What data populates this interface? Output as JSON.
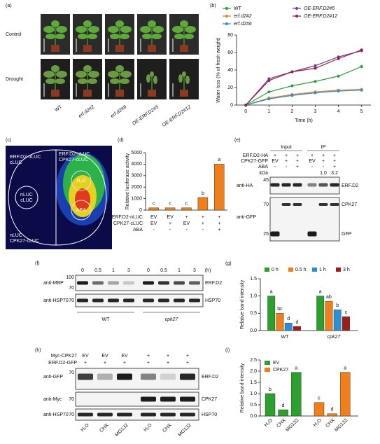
{
  "panel_a": {
    "label": "(a)",
    "rows": [
      "Control",
      "Drought"
    ],
    "columns": [
      "WT",
      "erf.d2#2",
      "erf.d2#6",
      "OE-ERF.D2#5",
      "OE-ERF.D2#12"
    ]
  },
  "panel_c": {
    "label": "(c)",
    "top_left": [
      "ERF.D2-nLUC",
      "cLUC"
    ],
    "top_right": [
      "ERF.D2-nLUC",
      "CPK27-cLUC"
    ],
    "left": [
      "nLUC",
      "cLUC"
    ],
    "bottom_left": [
      "nLUC",
      "CPK27-cLUC"
    ],
    "spots": [
      "H₂O",
      "ABA"
    ]
  },
  "panel_e": {
    "label": "(e)",
    "groups": [
      "Input",
      "IP"
    ],
    "row_labels": [
      "ERF.D2-HA",
      "CPK27-GFP",
      "ABA"
    ],
    "cells": [
      [
        "+",
        "+",
        "+",
        "+",
        "+",
        "+"
      ],
      [
        "EV",
        "+",
        "+",
        "EV",
        "+",
        "+"
      ],
      [
        "-",
        "-",
        "+",
        "-",
        "-",
        "+"
      ]
    ],
    "kda": "kDa",
    "ratios": [
      "1.0",
      "3.2"
    ],
    "antibodies": [
      "anti-HA",
      "anti-GFP"
    ],
    "markers": [
      "45",
      "70",
      "25"
    ],
    "targets": [
      "ERF.D2",
      "CPK27",
      "GFP"
    ]
  },
  "panel_f": {
    "label": "(f)",
    "times": [
      "0",
      "0.5",
      "1",
      "3",
      "0",
      "0.5",
      "1",
      "3"
    ],
    "unit": "(h)",
    "antibodies": [
      "anti-MBP",
      "anti-HSP70"
    ],
    "markers": [
      "100",
      "70",
      "70"
    ],
    "targets": [
      "ERF.D2",
      "HSP70"
    ],
    "genotypes": [
      "WT",
      "cpk27"
    ]
  },
  "panel_h": {
    "label": "(h)",
    "row_labels": [
      "Myc-CPK27",
      "ERF.D2-GFP"
    ],
    "cells": [
      [
        "EV",
        "EV",
        "EV",
        "+",
        "+",
        "+"
      ],
      [
        "+",
        "+",
        "+",
        "+",
        "+",
        "+"
      ]
    ],
    "antibodies": [
      "anti-GFP",
      "anti-Myc",
      "anti-HSP70"
    ],
    "markers": [
      "70",
      "70",
      "70"
    ],
    "targets": [
      "ERF.D2",
      "CPK27",
      "HSP70"
    ],
    "treatments": [
      "H₂O",
      "CHX",
      "MG132",
      "H₂O",
      "CHX",
      "MG132"
    ]
  },
  "chart_data": [
    {
      "panel": "(b)",
      "type": "line",
      "xlabel": "Time (h)",
      "ylabel": "Water loss (% of fresh weight)",
      "x": [
        0,
        1,
        2,
        3,
        4,
        5
      ],
      "xlim": [
        -0.4,
        5.4
      ],
      "xticks": [
        0,
        1,
        2,
        3,
        4,
        5
      ],
      "ylim": [
        0,
        80
      ],
      "yticks": [
        0,
        20,
        40,
        60,
        80
      ],
      "series": [
        {
          "name": "WT",
          "color": "#2e9e3e",
          "values": [
            0,
            15,
            22,
            27,
            33,
            44
          ]
        },
        {
          "name": "erf.d2#2",
          "color": "#f07f1b",
          "values": [
            0,
            8,
            12,
            15,
            17,
            18
          ]
        },
        {
          "name": "erf.d2#6",
          "color": "#2b8fd6",
          "values": [
            0,
            7,
            11,
            14,
            16,
            17
          ]
        },
        {
          "name": "OE-ERF.D2#5",
          "color": "#6a3fa0",
          "values": [
            0,
            30,
            38,
            45,
            55,
            62
          ]
        },
        {
          "name": "OE-ERF.D2#12",
          "color": "#a01c3c",
          "values": [
            0,
            28,
            38,
            42,
            53,
            63
          ]
        }
      ]
    },
    {
      "panel": "(d)",
      "type": "bar",
      "ylabel": "Relative luciferase activity",
      "values": [
        200,
        200,
        200,
        1100,
        4000
      ],
      "color": "#f07f1b",
      "letters": [
        "c",
        "c",
        "c",
        "b",
        "a"
      ],
      "ylim": [
        0,
        5000
      ],
      "yticks": [
        0,
        1000,
        2000,
        3000,
        4000,
        5000
      ],
      "table": {
        "rows": [
          "ERF.D2-nLUC",
          "CPK27-cLUC",
          "ABA"
        ],
        "cells": [
          [
            "EV",
            "EV",
            "+",
            "+",
            "+"
          ],
          [
            "EV",
            "+",
            "EV",
            "+",
            "+"
          ],
          [
            "-",
            "-",
            "-",
            "-",
            "+"
          ]
        ]
      }
    },
    {
      "panel": "(g)",
      "type": "grouped_bar",
      "ylabel": "Relative band intensity",
      "categories": [
        "WT",
        "cpk27"
      ],
      "series": [
        {
          "name": "0 h",
          "color": "#2ca02c",
          "values": [
            1.0,
            1.0
          ],
          "letters": [
            "a",
            "a"
          ]
        },
        {
          "name": "0.5 h",
          "color": "#f07f1b",
          "values": [
            0.5,
            0.85
          ],
          "letters": [
            "bc",
            "ab"
          ]
        },
        {
          "name": "1 h",
          "color": "#2b8fd6",
          "values": [
            0.22,
            0.6
          ],
          "letters": [
            "d",
            "b"
          ]
        },
        {
          "name": "3 h",
          "color": "#a01c1c",
          "values": [
            0.12,
            0.4
          ],
          "letters": [
            "d",
            "c"
          ]
        }
      ],
      "ylim": [
        0,
        1.5
      ],
      "yticks": [
        {
          "value": 0,
          "label": "0.0"
        },
        0.5,
        {
          "value": 1,
          "label": "1.0"
        },
        1.5
      ]
    },
    {
      "panel": "(i)",
      "type": "bar",
      "ylabel": "Relative band intensity",
      "categories": [
        "H₂O",
        "CHX",
        "MG132"
      ],
      "series": [
        {
          "name": "EV",
          "color": "#2ca02c",
          "values": [
            1.0,
            0.28,
            1.95
          ],
          "letters": [
            "b",
            "d",
            "a"
          ]
        },
        {
          "name": "CPK27",
          "color": "#f07f1b",
          "values": [
            0.6,
            0.1,
            1.95
          ],
          "letters": [
            "c",
            "d",
            "a"
          ]
        }
      ],
      "ylim": [
        0,
        2.5
      ],
      "yticks": [
        {
          "value": 0,
          "label": "0.0"
        },
        0.5,
        {
          "value": 1,
          "label": "1.0"
        },
        1.5,
        {
          "value": 2,
          "label": "2.0"
        },
        2.5
      ],
      "legend": "upper left"
    }
  ]
}
